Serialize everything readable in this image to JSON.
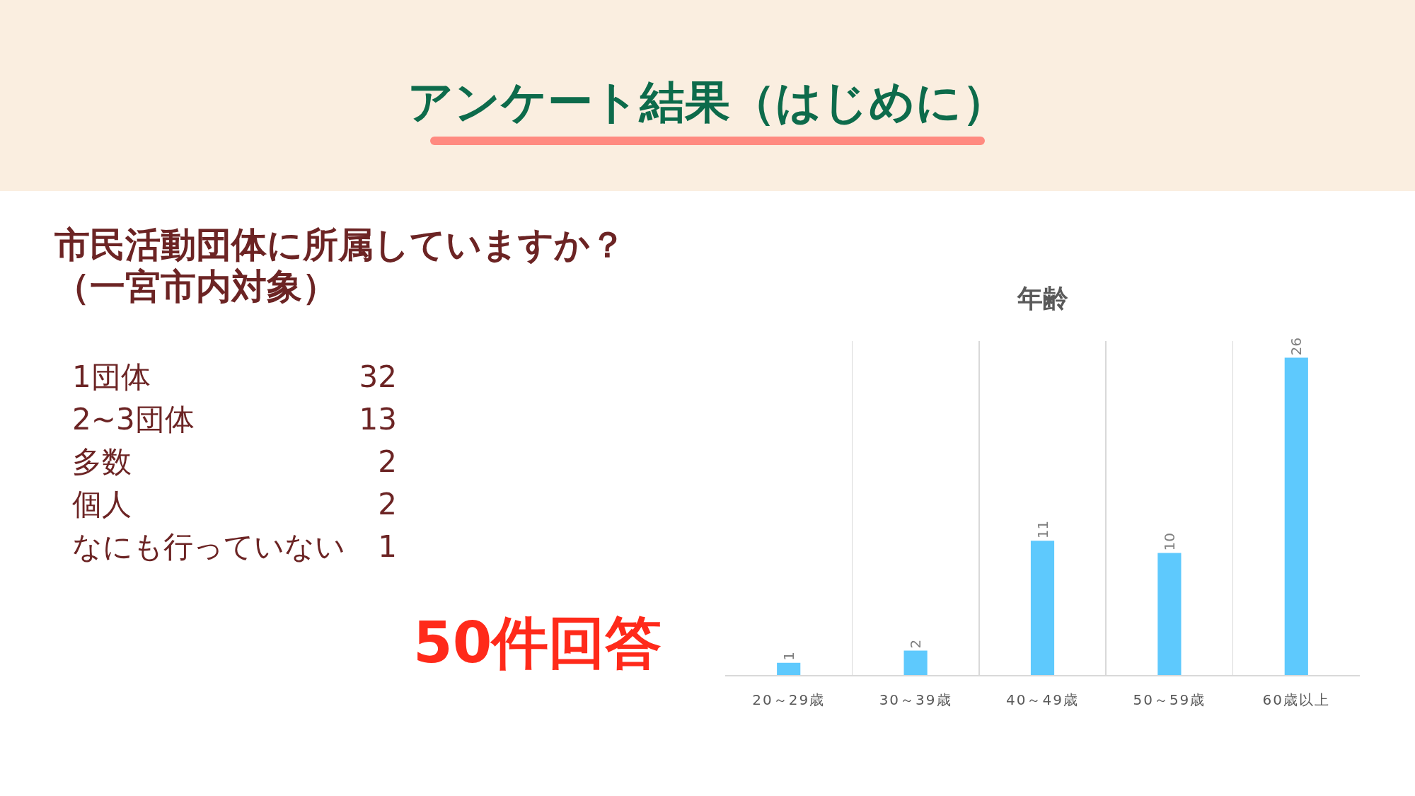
{
  "chart_data": [
    {
      "type": "other",
      "title": "アンケート結果（はじめに）",
      "subtitle": "市民活動団体に所属していますか？（一宮市内対象）",
      "categories": [
        "1団体",
        "2~3団体",
        "多数",
        "個人",
        "なにも行っていない"
      ],
      "values": [
        32,
        13,
        2,
        2,
        1
      ],
      "data_labels": true,
      "annotations": [
        "50件回答"
      ]
    },
    {
      "type": "bar",
      "title": "年齢",
      "categories": [
        "20～29歳",
        "30～39歳",
        "40～49歳",
        "50～59歳",
        "60歳以上"
      ],
      "values": [
        1,
        2,
        11,
        10,
        26
      ],
      "color": "#5ec9fd",
      "data_labels": true,
      "grid": "x",
      "tick_labels": "x"
    }
  ]
}
